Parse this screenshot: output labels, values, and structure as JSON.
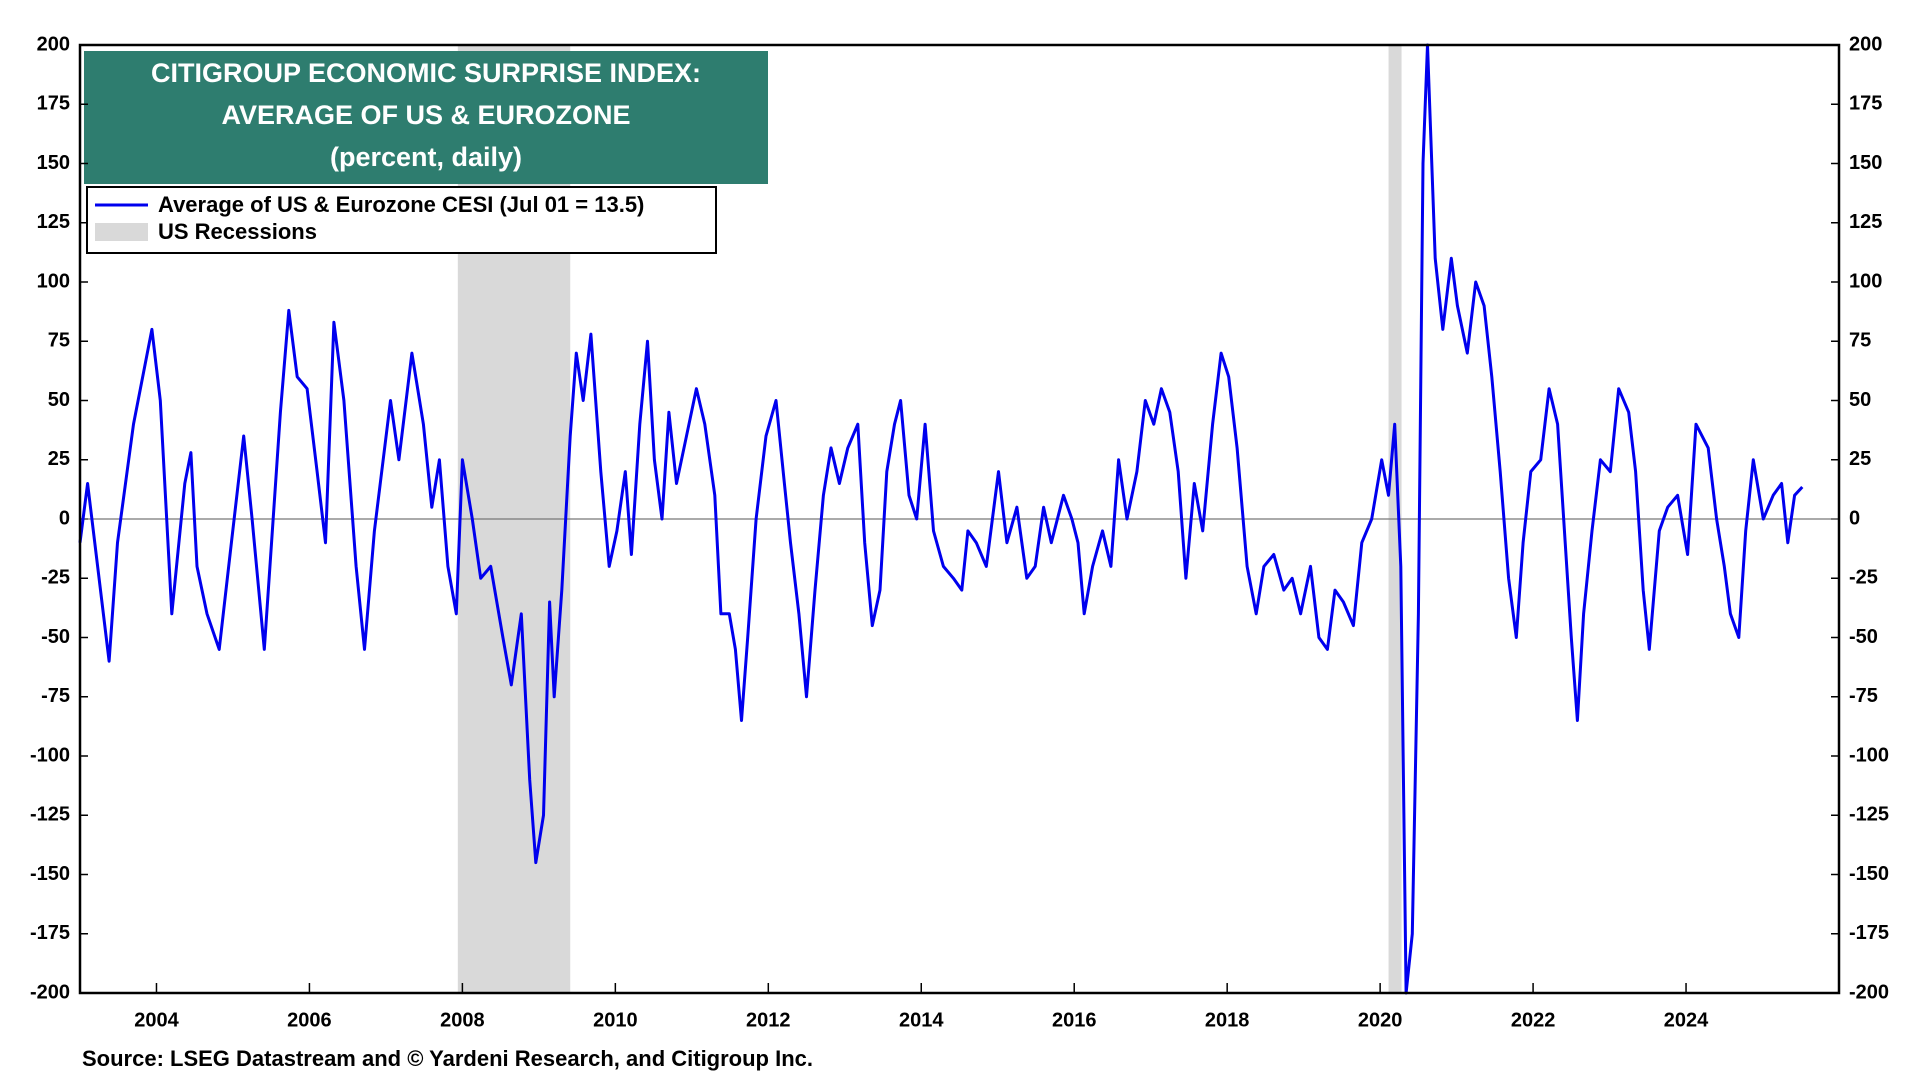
{
  "chart_data": {
    "type": "line",
    "title": [
      "CITIGROUP ECONOMIC SURPRISE INDEX:",
      "AVERAGE OF US & EUROZONE"
    ],
    "subtitle": "(percent, daily)",
    "source": "Source: LSEG Datastream and © Yardeni Research, and Citigroup Inc.",
    "title_color": "#2e7d6f",
    "xlim": [
      2003,
      2026
    ],
    "xticks": [
      2004,
      2006,
      2008,
      2010,
      2012,
      2014,
      2016,
      2018,
      2020,
      2022,
      2024
    ],
    "ylim": [
      -200,
      200
    ],
    "yticks": [
      -200,
      -175,
      -150,
      -125,
      -100,
      -75,
      -50,
      -25,
      0,
      25,
      50,
      75,
      100,
      125,
      150,
      175,
      200
    ],
    "recessions": {
      "name": "US Recessions",
      "color": "#d9d9d9",
      "spans": [
        [
          2007.94,
          2009.41
        ],
        [
          2020.11,
          2020.28
        ]
      ]
    },
    "x": [
      2003.0,
      2003.1,
      2003.38,
      2003.49,
      2003.7,
      2003.94,
      2004.05,
      2004.2,
      2004.37,
      2004.45,
      2004.53,
      2004.66,
      2004.82,
      2004.98,
      2005.14,
      2005.25,
      2005.41,
      2005.62,
      2005.73,
      2005.84,
      2005.97,
      2006.1,
      2006.21,
      2006.32,
      2006.45,
      2006.61,
      2006.72,
      2006.85,
      2007.06,
      2007.17,
      2007.34,
      2007.49,
      2007.6,
      2007.7,
      2007.81,
      2007.92,
      2008.0,
      2008.13,
      2008.24,
      2008.37,
      2008.53,
      2008.64,
      2008.77,
      2008.88,
      2008.96,
      2009.06,
      2009.14,
      2009.2,
      2009.3,
      2009.41,
      2009.49,
      2009.58,
      2009.68,
      2009.81,
      2009.92,
      2010.02,
      2010.13,
      2010.21,
      2010.32,
      2010.42,
      2010.51,
      2010.61,
      2010.7,
      2010.8,
      2010.93,
      2011.06,
      2011.17,
      2011.3,
      2011.38,
      2011.49,
      2011.57,
      2011.65,
      2011.73,
      2011.84,
      2011.97,
      2012.1,
      2012.21,
      2012.29,
      2012.4,
      2012.5,
      2012.61,
      2012.72,
      2012.82,
      2012.93,
      2013.04,
      2013.17,
      2013.26,
      2013.36,
      2013.46,
      2013.55,
      2013.65,
      2013.73,
      2013.84,
      2013.94,
      2014.05,
      2014.16,
      2014.29,
      2014.42,
      2014.53,
      2014.61,
      2014.72,
      2014.85,
      2015.01,
      2015.12,
      2015.25,
      2015.38,
      2015.49,
      2015.6,
      2015.7,
      2015.86,
      2015.97,
      2016.05,
      2016.13,
      2016.24,
      2016.37,
      2016.48,
      2016.58,
      2016.69,
      2016.82,
      2016.93,
      2017.04,
      2017.14,
      2017.25,
      2017.36,
      2017.46,
      2017.57,
      2017.68,
      2017.81,
      2017.92,
      2018.02,
      2018.13,
      2018.26,
      2018.38,
      2018.48,
      2018.61,
      2018.74,
      2018.85,
      2018.96,
      2019.09,
      2019.2,
      2019.31,
      2019.41,
      2019.52,
      2019.65,
      2019.76,
      2019.89,
      2020.02,
      2020.11,
      2020.19,
      2020.27,
      2020.34,
      2020.42,
      2020.5,
      2020.56,
      2020.62,
      2020.72,
      2020.82,
      2020.93,
      2021.01,
      2021.14,
      2021.25,
      2021.36,
      2021.46,
      2021.57,
      2021.68,
      2021.78,
      2021.87,
      2021.97,
      2022.1,
      2022.21,
      2022.32,
      2022.42,
      2022.5,
      2022.58,
      2022.66,
      2022.77,
      2022.88,
      2023.01,
      2023.12,
      2023.25,
      2023.34,
      2023.44,
      2023.52,
      2023.65,
      2023.76,
      2023.89,
      2024.02,
      2024.13,
      2024.29,
      2024.4,
      2024.5,
      2024.58,
      2024.69,
      2024.78,
      2024.88,
      2025.01,
      2025.14,
      2025.25,
      2025.33,
      2025.42,
      2025.52
    ],
    "series": [
      {
        "name": "Average of US & Eurozone CESI (Jul 01 = 13.5)",
        "color": "#0000ee",
        "values": [
          -10,
          15,
          -60,
          -10,
          40,
          80,
          50,
          -40,
          15,
          28,
          -20,
          -40,
          -55,
          -10,
          35,
          0,
          -55,
          45,
          88,
          60,
          55,
          20,
          -10,
          83,
          50,
          -20,
          -55,
          -5,
          50,
          25,
          70,
          40,
          5,
          25,
          -20,
          -40,
          25,
          0,
          -25,
          -20,
          -50,
          -70,
          -40,
          -110,
          -145,
          -125,
          -35,
          -75,
          -30,
          35,
          70,
          50,
          78,
          20,
          -20,
          -5,
          20,
          -15,
          40,
          75,
          25,
          0,
          45,
          15,
          35,
          55,
          40,
          10,
          -40,
          -40,
          -55,
          -85,
          -50,
          0,
          35,
          50,
          15,
          -10,
          -40,
          -75,
          -30,
          10,
          30,
          15,
          30,
          40,
          -10,
          -45,
          -30,
          20,
          40,
          50,
          10,
          0,
          40,
          -5,
          -20,
          -25,
          -30,
          -5,
          -10,
          -20,
          20,
          -10,
          5,
          -25,
          -20,
          5,
          -10,
          10,
          0,
          -10,
          -40,
          -20,
          -5,
          -20,
          25,
          0,
          20,
          50,
          40,
          55,
          45,
          20,
          -25,
          15,
          -5,
          40,
          70,
          60,
          30,
          -20,
          -40,
          -20,
          -15,
          -30,
          -25,
          -40,
          -20,
          -50,
          -55,
          -30,
          -35,
          -45,
          -10,
          0,
          25,
          10,
          40,
          -20,
          -200,
          -175,
          -40,
          150,
          200,
          110,
          80,
          110,
          90,
          70,
          100,
          90,
          60,
          20,
          -25,
          -50,
          -10,
          20,
          25,
          55,
          40,
          -10,
          -50,
          -85,
          -40,
          -5,
          25,
          20,
          55,
          45,
          20,
          -30,
          -55,
          -5,
          5,
          10,
          -15,
          40,
          30,
          0,
          -20,
          -40,
          -50,
          -5,
          25,
          0,
          10,
          15,
          -10,
          10,
          13.5
        ]
      }
    ]
  }
}
